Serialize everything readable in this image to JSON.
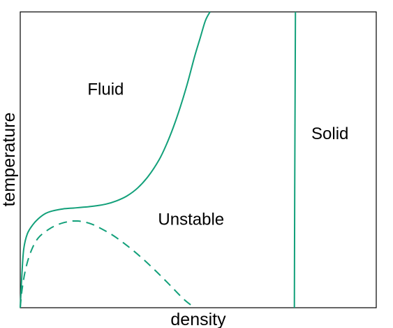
{
  "chart_data": {
    "type": "line",
    "title": "",
    "xlabel": "density",
    "ylabel": "temperature",
    "xlim": [
      0,
      1
    ],
    "ylim": [
      0,
      1
    ],
    "grid": false,
    "legend": "none",
    "ticks": "none",
    "line_color": "#12a07a",
    "series": [
      {
        "style": "solid",
        "x": [
          0.0,
          0.005,
          0.01,
          0.02,
          0.035,
          0.05,
          0.07,
          0.09,
          0.12,
          0.15,
          0.18,
          0.21,
          0.24,
          0.27,
          0.3,
          0.33,
          0.36,
          0.39,
          0.41,
          0.43,
          0.45,
          0.47,
          0.49,
          0.505,
          0.52,
          0.533
        ],
        "y": [
          0.0,
          0.12,
          0.2,
          0.25,
          0.28,
          0.3,
          0.318,
          0.327,
          0.334,
          0.337,
          0.34,
          0.344,
          0.35,
          0.361,
          0.378,
          0.405,
          0.445,
          0.5,
          0.55,
          0.61,
          0.68,
          0.76,
          0.85,
          0.91,
          0.97,
          1.0
        ]
      },
      {
        "style": "dashed",
        "x": [
          0.0,
          0.005,
          0.015,
          0.03,
          0.05,
          0.08,
          0.11,
          0.14,
          0.16,
          0.18,
          0.2,
          0.22,
          0.26,
          0.3,
          0.34,
          0.38,
          0.42,
          0.46,
          0.49
        ],
        "y": [
          0.0,
          0.06,
          0.13,
          0.19,
          0.235,
          0.265,
          0.283,
          0.292,
          0.293,
          0.29,
          0.283,
          0.272,
          0.245,
          0.21,
          0.17,
          0.125,
          0.077,
          0.028,
          0.0
        ]
      },
      {
        "style": "solid",
        "x": [
          0.77,
          0.771,
          0.772,
          0.773
        ],
        "y": [
          0.0,
          0.4,
          0.7,
          1.0
        ]
      }
    ],
    "annotations": [
      {
        "text": "Fluid",
        "x": 0.24,
        "y": 0.72
      },
      {
        "text": "Solid",
        "x": 0.87,
        "y": 0.57
      },
      {
        "text": "Unstable",
        "x": 0.48,
        "y": 0.28
      }
    ]
  }
}
